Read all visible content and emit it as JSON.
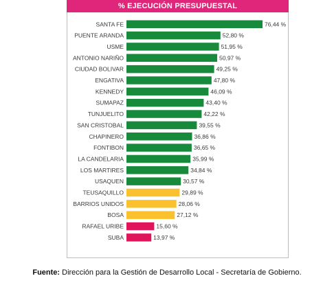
{
  "chart_data": {
    "type": "bar",
    "orientation": "horizontal",
    "title": "% EJECUCIÓN PRESUPUESTAL",
    "categories": [
      "SANTA FE",
      "PUENTE ARANDA",
      "USME",
      "ANTONIO NARIÑO",
      "CIUDAD BOLIVAR",
      "ENGATIVA",
      "KENNEDY",
      "SUMAPAZ",
      "TUNJUELITO",
      "SAN CRISTOBAL",
      "CHAPINERO",
      "FONTIBON",
      "LA CANDELARIA",
      "LOS MARTIRES",
      "USAQUEN",
      "TEUSAQUILLO",
      "BARRIOS UNIDOS",
      "BOSA",
      "RAFAEL URIBE",
      "SUBA"
    ],
    "values": [
      76.44,
      52.8,
      51.95,
      50.97,
      49.25,
      47.8,
      46.09,
      43.4,
      42.22,
      39.55,
      36.86,
      36.65,
      35.99,
      34.84,
      30.57,
      29.89,
      28.06,
      27.12,
      15.6,
      13.97
    ],
    "value_labels": [
      "76,44 %",
      "52,80 %",
      "51,95 %",
      "50,97 %",
      "49,25 %",
      "47,80 %",
      "46,09 %",
      "43,40 %",
      "42,22 %",
      "39,55 %",
      "36,86 %",
      "36,65 %",
      "35,99 %",
      "34,84 %",
      "30,57 %",
      "29,89 %",
      "28,06 %",
      "27,12 %",
      "15,60 %",
      "13,97 %"
    ],
    "bar_colors": [
      "#178a3c",
      "#178a3c",
      "#178a3c",
      "#178a3c",
      "#178a3c",
      "#178a3c",
      "#178a3c",
      "#178a3c",
      "#178a3c",
      "#178a3c",
      "#178a3c",
      "#178a3c",
      "#178a3c",
      "#178a3c",
      "#178a3c",
      "#fbc02d",
      "#fbc02d",
      "#fbc02d",
      "#e0145a",
      "#e0145a"
    ],
    "xlim": [
      0,
      76.44
    ],
    "grid": false,
    "legend": "none"
  },
  "colors": {
    "title_bg": "#e0267a",
    "high": "#178a3c",
    "medium": "#fbc02d",
    "low": "#e0145a"
  },
  "source": {
    "label": "Fuente:",
    "text": " Dirección para la Gestión de Desarrollo Local - Secretaría de Gobierno."
  }
}
